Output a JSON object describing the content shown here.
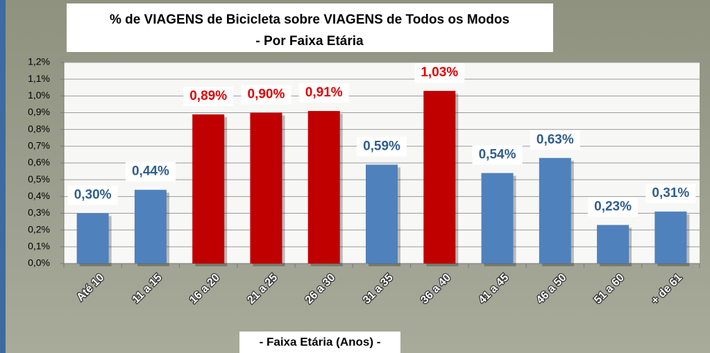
{
  "chart_data": {
    "type": "bar",
    "title": "% de VIAGENS de Bicicleta sobre VIAGENS de Todos os Modos",
    "subtitle": "- Por Faixa Etária",
    "x_label": "- Faixa Etária (Anos) -",
    "categories": [
      "Até 10",
      "11 a 15",
      "16 a 20",
      "21 a 25",
      "26 a 30",
      "31 a 35",
      "36 a 40",
      "41 a 45",
      "46 a 50",
      "51 a 60",
      "+ de 61"
    ],
    "values": [
      0.3,
      0.44,
      0.89,
      0.9,
      0.91,
      0.59,
      1.03,
      0.54,
      0.63,
      0.23,
      0.31
    ],
    "value_labels": [
      "0,30%",
      "0,44%",
      "0,89%",
      "0,90%",
      "0,91%",
      "0,59%",
      "1,03%",
      "0,54%",
      "0,63%",
      "0,23%",
      "0,31%"
    ],
    "colors": [
      "#4f81bd",
      "#4f81bd",
      "#c00000",
      "#c00000",
      "#c00000",
      "#4f81bd",
      "#c00000",
      "#4f81bd",
      "#4f81bd",
      "#4f81bd",
      "#4f81bd"
    ],
    "label_colors": [
      "#2f5d8f",
      "#2f5d8f",
      "#e00000",
      "#e00000",
      "#e00000",
      "#2f5d8f",
      "#e00000",
      "#2f5d8f",
      "#2f5d8f",
      "#2f5d8f",
      "#2f5d8f"
    ],
    "ylim": [
      0,
      1.2
    ],
    "yticks": [
      {
        "value": 0,
        "label": "0,0%"
      },
      {
        "value": 0.1,
        "label": "0,1%"
      },
      {
        "value": 0.2,
        "label": "0,2%"
      },
      {
        "value": 0.3,
        "label": "0,3%"
      },
      {
        "value": 0.4,
        "label": "0,4%"
      },
      {
        "value": 0.5,
        "label": "0,5%"
      },
      {
        "value": 0.6,
        "label": "0,6%"
      },
      {
        "value": 0.7,
        "label": "0,7%"
      },
      {
        "value": 0.8,
        "label": "0,8%"
      },
      {
        "value": 0.9,
        "label": "0,9%"
      },
      {
        "value": 1.0,
        "label": "1,0%"
      },
      {
        "value": 1.1,
        "label": "1,1%"
      },
      {
        "value": 1.2,
        "label": "1,2%"
      }
    ],
    "grid": true
  }
}
